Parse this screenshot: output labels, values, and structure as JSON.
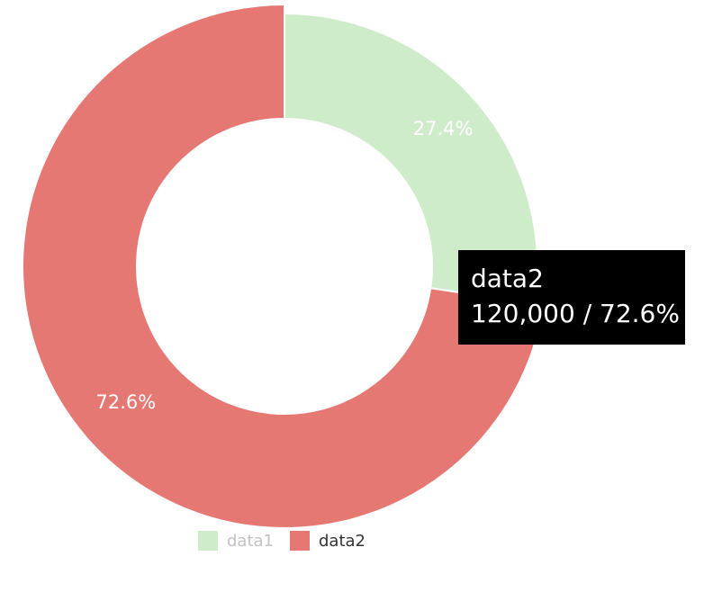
{
  "chart_data": {
    "type": "pie",
    "variant": "donut",
    "series": [
      {
        "name": "data1",
        "value": 45195,
        "percent_label": "27.4%",
        "color": "#cfecca"
      },
      {
        "name": "data2",
        "value": 120000,
        "percent_label": "72.6%",
        "color": "#e67873"
      }
    ],
    "legend": {
      "placement": "bottom-center",
      "items": [
        "data1",
        "data2"
      ],
      "active": "data2",
      "inactive": [
        "data1"
      ]
    },
    "tooltip": {
      "visible": true,
      "series_name": "data2",
      "value_text": "120,000 / 72.6%"
    }
  }
}
